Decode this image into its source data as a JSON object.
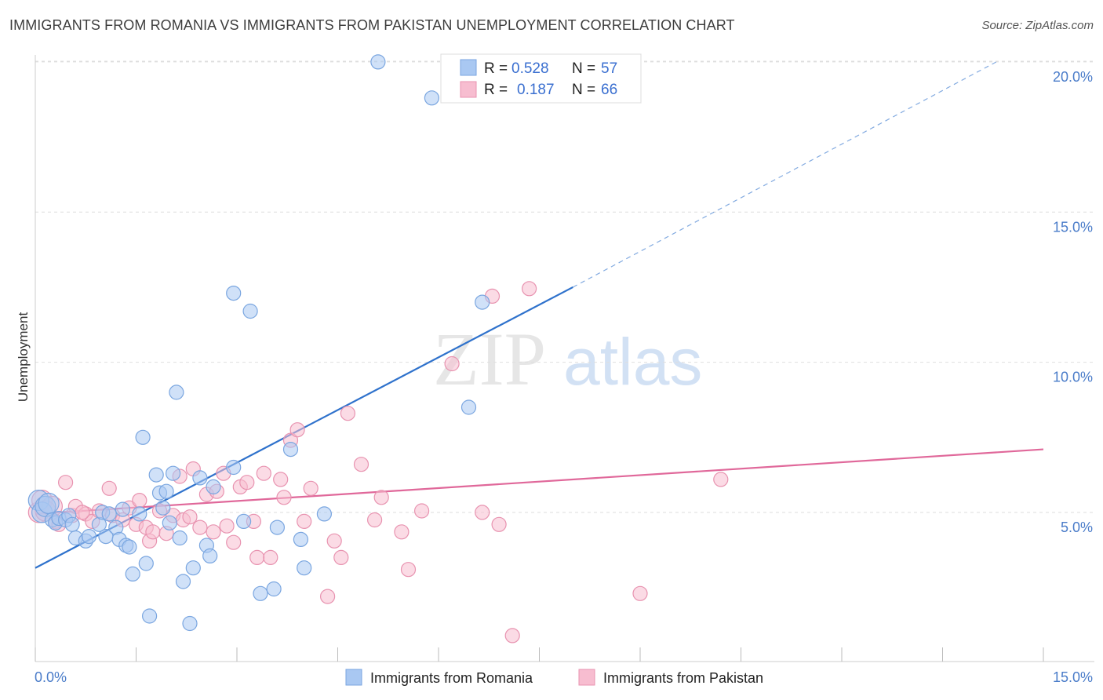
{
  "title": "IMMIGRANTS FROM ROMANIA VS IMMIGRANTS FROM PAKISTAN UNEMPLOYMENT CORRELATION CHART",
  "source": "Source: ZipAtlas.com",
  "watermark": {
    "zip": "ZIP",
    "atlas": "atlas"
  },
  "colors": {
    "romania_fill": "#a9c8f2",
    "romania_stroke": "#7aa6e0",
    "romania_line": "#2f72cc",
    "pakistan_fill": "#f7bdd0",
    "pakistan_stroke": "#e893b0",
    "pakistan_line": "#e0689a",
    "grid": "#dedede",
    "axis_text": "#4a7cc9"
  },
  "chart_data": {
    "type": "scatter",
    "title": "IMMIGRANTS FROM ROMANIA VS IMMIGRANTS FROM PAKISTAN UNEMPLOYMENT CORRELATION CHART",
    "xlabel": "",
    "ylabel": "Unemployment",
    "xlim": [
      0,
      15
    ],
    "ylim": [
      0,
      20.5
    ],
    "x_tick_labels": [
      "0.0%",
      "15.0%"
    ],
    "y_ticks": [
      5,
      10,
      15,
      20
    ],
    "y_tick_labels": [
      "5.0%",
      "10.0%",
      "15.0%",
      "20.0%"
    ],
    "grid": true,
    "legend": {
      "position": "top-center",
      "entries": [
        {
          "r_label": "R =",
          "r_value": "0.528",
          "n_label": "N =",
          "n_value": "57"
        },
        {
          "r_label": "R =",
          "r_value": "0.187",
          "n_label": "N =",
          "n_value": "66"
        }
      ]
    },
    "series": [
      {
        "name": "Immigrants from Romania",
        "trend": {
          "x0": 0,
          "y0": 3.15,
          "x1": 8.0,
          "y1": 12.5,
          "dashed_to_x": 14.3,
          "dashed_to_y": 20.0
        },
        "points": [
          [
            0.05,
            5.4
          ],
          [
            0.1,
            5.0
          ],
          [
            0.15,
            5.2
          ],
          [
            0.2,
            5.3
          ],
          [
            0.25,
            4.75
          ],
          [
            0.3,
            4.65
          ],
          [
            0.35,
            4.8
          ],
          [
            0.45,
            4.75
          ],
          [
            0.5,
            4.9
          ],
          [
            0.55,
            4.6
          ],
          [
            0.6,
            4.15
          ],
          [
            0.75,
            4.05
          ],
          [
            0.8,
            4.2
          ],
          [
            0.95,
            4.6
          ],
          [
            1.0,
            5.0
          ],
          [
            1.05,
            4.2
          ],
          [
            1.1,
            4.95
          ],
          [
            1.2,
            4.5
          ],
          [
            1.25,
            4.1
          ],
          [
            1.3,
            5.1
          ],
          [
            1.35,
            3.9
          ],
          [
            1.4,
            3.85
          ],
          [
            1.45,
            2.95
          ],
          [
            1.55,
            4.95
          ],
          [
            1.6,
            7.5
          ],
          [
            1.65,
            3.3
          ],
          [
            1.7,
            1.55
          ],
          [
            1.8,
            6.25
          ],
          [
            1.85,
            5.65
          ],
          [
            1.9,
            5.15
          ],
          [
            1.95,
            5.7
          ],
          [
            2.0,
            4.65
          ],
          [
            2.05,
            6.3
          ],
          [
            2.1,
            9.0
          ],
          [
            2.15,
            4.15
          ],
          [
            2.2,
            2.7
          ],
          [
            2.3,
            1.3
          ],
          [
            2.35,
            3.15
          ],
          [
            2.45,
            6.15
          ],
          [
            2.55,
            3.9
          ],
          [
            2.6,
            3.55
          ],
          [
            2.65,
            5.85
          ],
          [
            2.95,
            12.3
          ],
          [
            2.95,
            6.5
          ],
          [
            3.1,
            4.7
          ],
          [
            3.2,
            11.7
          ],
          [
            3.35,
            2.3
          ],
          [
            3.55,
            2.45
          ],
          [
            3.6,
            4.5
          ],
          [
            3.8,
            7.1
          ],
          [
            3.95,
            4.1
          ],
          [
            4.0,
            3.15
          ],
          [
            4.3,
            4.95
          ],
          [
            5.1,
            20.0
          ],
          [
            5.9,
            18.8
          ],
          [
            6.45,
            8.5
          ],
          [
            6.65,
            12.0
          ]
        ]
      },
      {
        "name": "Immigrants from Pakistan",
        "trend": {
          "x0": 0,
          "y0": 4.95,
          "x1": 15.0,
          "y1": 7.1
        },
        "points": [
          [
            0.05,
            5.0
          ],
          [
            0.1,
            5.4
          ],
          [
            0.15,
            5.05
          ],
          [
            0.25,
            5.2
          ],
          [
            0.3,
            4.7
          ],
          [
            0.35,
            4.6
          ],
          [
            0.45,
            6.0
          ],
          [
            0.55,
            4.9
          ],
          [
            0.6,
            5.2
          ],
          [
            0.75,
            4.95
          ],
          [
            0.85,
            4.7
          ],
          [
            0.95,
            5.05
          ],
          [
            1.1,
            5.8
          ],
          [
            1.15,
            4.9
          ],
          [
            1.3,
            4.75
          ],
          [
            1.4,
            5.15
          ],
          [
            1.5,
            4.6
          ],
          [
            1.55,
            5.4
          ],
          [
            1.65,
            4.5
          ],
          [
            1.7,
            4.05
          ],
          [
            1.75,
            4.35
          ],
          [
            1.85,
            5.05
          ],
          [
            1.95,
            4.3
          ],
          [
            2.05,
            4.9
          ],
          [
            2.15,
            6.2
          ],
          [
            2.2,
            4.75
          ],
          [
            2.3,
            4.85
          ],
          [
            2.35,
            6.45
          ],
          [
            2.45,
            4.5
          ],
          [
            2.55,
            5.6
          ],
          [
            2.65,
            4.35
          ],
          [
            2.7,
            5.7
          ],
          [
            2.8,
            6.3
          ],
          [
            2.85,
            4.55
          ],
          [
            2.95,
            4.0
          ],
          [
            3.05,
            5.85
          ],
          [
            3.15,
            6.0
          ],
          [
            3.25,
            4.7
          ],
          [
            3.3,
            3.5
          ],
          [
            3.4,
            6.3
          ],
          [
            3.5,
            3.5
          ],
          [
            3.65,
            6.1
          ],
          [
            3.7,
            5.5
          ],
          [
            3.8,
            7.4
          ],
          [
            3.9,
            7.75
          ],
          [
            4.0,
            4.7
          ],
          [
            4.1,
            5.8
          ],
          [
            4.35,
            2.2
          ],
          [
            4.45,
            4.05
          ],
          [
            4.55,
            3.5
          ],
          [
            4.65,
            8.3
          ],
          [
            4.85,
            6.6
          ],
          [
            5.05,
            4.75
          ],
          [
            5.15,
            5.5
          ],
          [
            5.45,
            4.35
          ],
          [
            5.55,
            3.1
          ],
          [
            5.75,
            5.05
          ],
          [
            6.2,
            9.95
          ],
          [
            6.65,
            5.0
          ],
          [
            6.8,
            12.2
          ],
          [
            6.9,
            4.6
          ],
          [
            7.1,
            0.9
          ],
          [
            7.35,
            12.45
          ],
          [
            9.0,
            2.3
          ],
          [
            10.2,
            6.1
          ],
          [
            0.7,
            5.0
          ]
        ]
      }
    ]
  }
}
